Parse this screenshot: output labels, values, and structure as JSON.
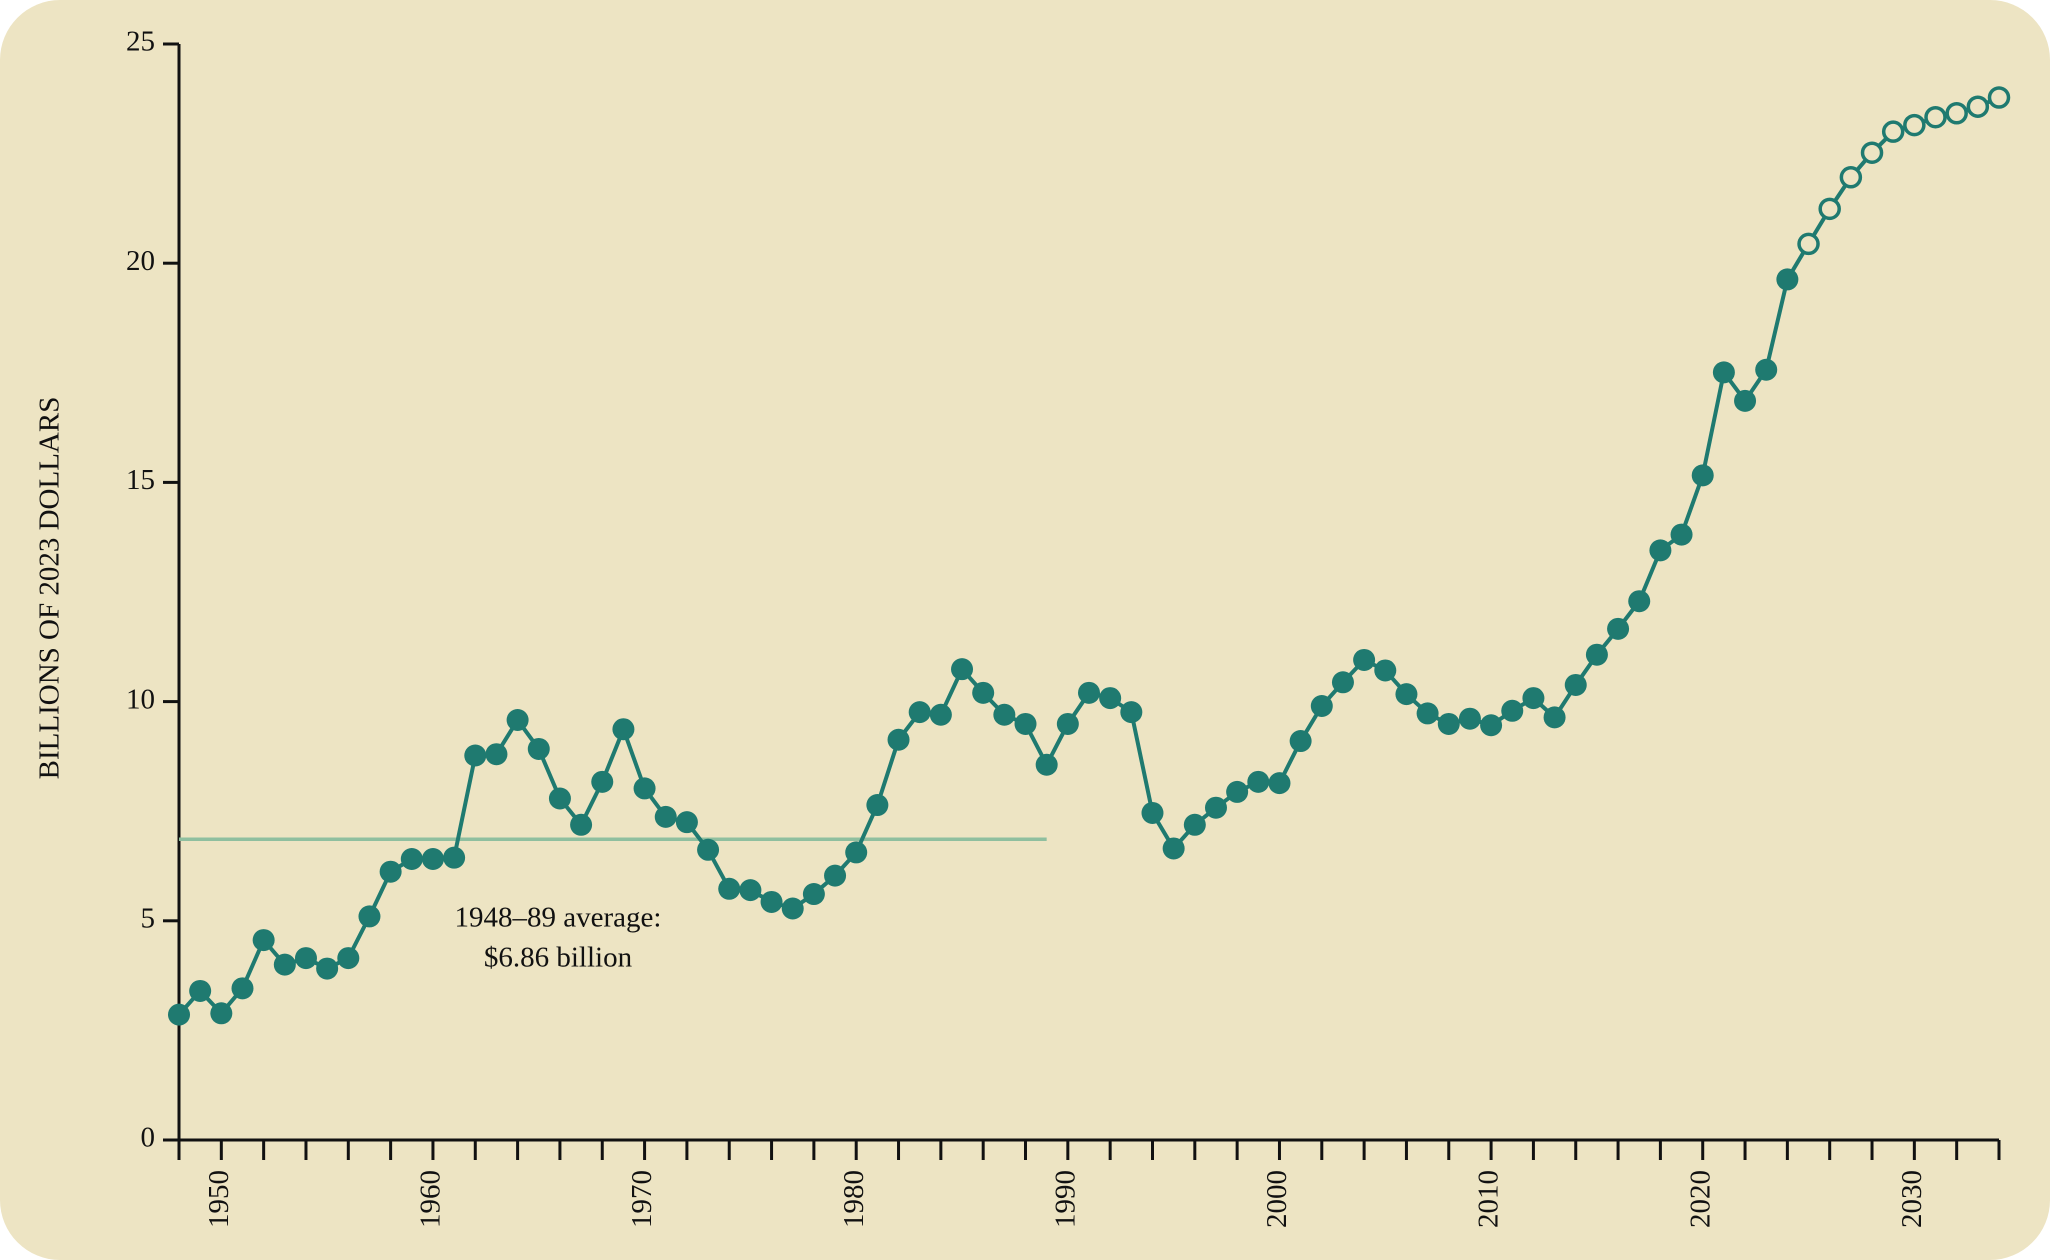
{
  "chart_data": {
    "type": "line",
    "y_label": "BILLIONS OF 2023 DOLLARS",
    "annotation": [
      "1948–89 average:",
      "$6.86 billion"
    ],
    "average_line": {
      "value": 6.86,
      "x": [
        1948,
        1989
      ],
      "color": "#8fbf9f"
    },
    "x": [
      1948,
      1949,
      1950,
      1951,
      1952,
      1953,
      1954,
      1955,
      1956,
      1957,
      1958,
      1959,
      1960,
      1961,
      1962,
      1963,
      1964,
      1965,
      1966,
      1967,
      1968,
      1969,
      1970,
      1971,
      1972,
      1973,
      1974,
      1975,
      1976,
      1977,
      1978,
      1979,
      1980,
      1981,
      1982,
      1983,
      1984,
      1985,
      1986,
      1987,
      1988,
      1989,
      1990,
      1991,
      1992,
      1993,
      1994,
      1995,
      1996,
      1997,
      1998,
      1999,
      2000,
      2001,
      2002,
      2003,
      2004,
      2005,
      2006,
      2007,
      2008,
      2009,
      2010,
      2011,
      2012,
      2013,
      2014,
      2015,
      2016,
      2017,
      2018,
      2019,
      2020,
      2021,
      2022,
      2023,
      2024,
      2025,
      2026,
      2027,
      2028,
      2029,
      2030,
      2031,
      2032,
      2033,
      2034
    ],
    "series": [
      {
        "color": "#1f7a70",
        "values": [
          2.86,
          3.4,
          2.89,
          3.46,
          4.56,
          4.0,
          4.15,
          3.91,
          4.15,
          5.1,
          6.12,
          6.41,
          6.41,
          6.44,
          8.77,
          8.8,
          9.58,
          8.92,
          7.79,
          7.19,
          8.17,
          9.37,
          8.02,
          7.37,
          7.25,
          6.62,
          5.73,
          5.7,
          5.43,
          5.28,
          5.61,
          6.03,
          6.56,
          7.64,
          9.13,
          9.76,
          9.7,
          10.74,
          10.2,
          9.7,
          9.49,
          8.56,
          9.49,
          10.2,
          10.08,
          9.76,
          7.46,
          6.65,
          7.19,
          7.58,
          7.94,
          8.17,
          8.14,
          9.1,
          9.9,
          10.44,
          10.95,
          10.71,
          10.17,
          9.73,
          9.49,
          9.61,
          9.46,
          9.79,
          10.08,
          9.64,
          10.38,
          11.07,
          11.66,
          12.29,
          13.45,
          13.81,
          15.16,
          17.51,
          16.86,
          17.57,
          19.63,
          20.44,
          21.24,
          21.96,
          22.52,
          23.0,
          23.15,
          23.33,
          23.42,
          23.57,
          23.78
        ]
      }
    ],
    "projection_start": 2025,
    "xlim": [
      1948,
      2034
    ],
    "xticks": [
      1950,
      1960,
      1970,
      1980,
      1990,
      2000,
      2010,
      2020,
      2030
    ],
    "xminor_ticks": [
      1948,
      1952,
      1954,
      1956,
      1958,
      1962,
      1964,
      1966,
      1968,
      1972,
      1974,
      1976,
      1978,
      1982,
      1984,
      1986,
      1988,
      1992,
      1994,
      1996,
      1998,
      2002,
      2004,
      2006,
      2008,
      2012,
      2014,
      2016,
      2018,
      2022,
      2024,
      2026,
      2028,
      2032,
      2034
    ],
    "ylim": [
      0,
      25
    ],
    "yticks": [
      0,
      5,
      10,
      15,
      20,
      25
    ]
  }
}
